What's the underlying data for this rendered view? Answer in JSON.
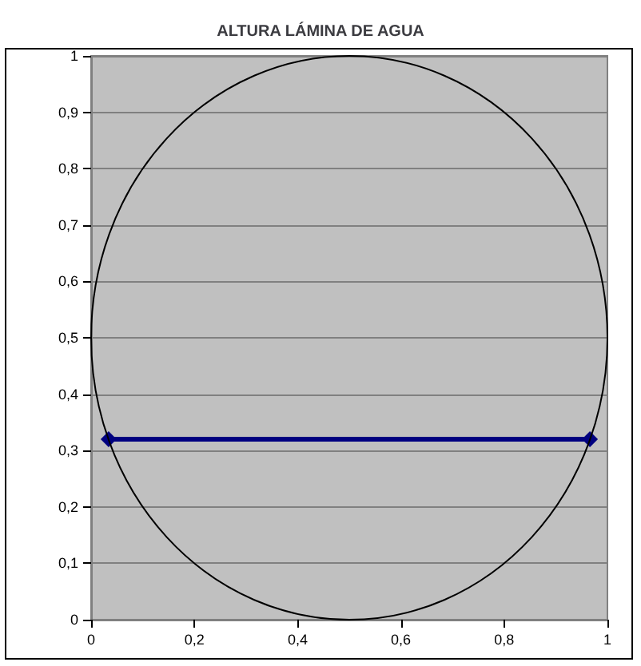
{
  "chart_data": {
    "type": "line",
    "title": "ALTURA LÁMINA DE AGUA",
    "series": [
      {
        "color": "#000080",
        "marker": "diamond",
        "x": [
          0.034,
          0.966
        ],
        "values": [
          0.32,
          0.32
        ]
      }
    ],
    "xlim": [
      0,
      1
    ],
    "xticks": [
      0,
      {
        "value": 0.2,
        "label": "0,2"
      },
      {
        "value": 0.4,
        "label": "0,4"
      },
      {
        "value": 0.6,
        "label": "0,6"
      },
      {
        "value": 0.8,
        "label": "0,8"
      },
      1
    ],
    "ylim": [
      0,
      1
    ],
    "yticks": [
      0,
      {
        "value": 0.1,
        "label": "0,1"
      },
      {
        "value": 0.2,
        "label": "0,2"
      },
      {
        "value": 0.3,
        "label": "0,3"
      },
      {
        "value": 0.4,
        "label": "0,4"
      },
      {
        "value": 0.5,
        "label": "0,5"
      },
      {
        "value": 0.6,
        "label": "0,6"
      },
      {
        "value": 0.7,
        "label": "0,7"
      },
      {
        "value": 0.8,
        "label": "0,8"
      },
      {
        "value": 0.9,
        "label": "0,9"
      },
      1
    ],
    "grid": "y",
    "line_style": "solid"
  }
}
